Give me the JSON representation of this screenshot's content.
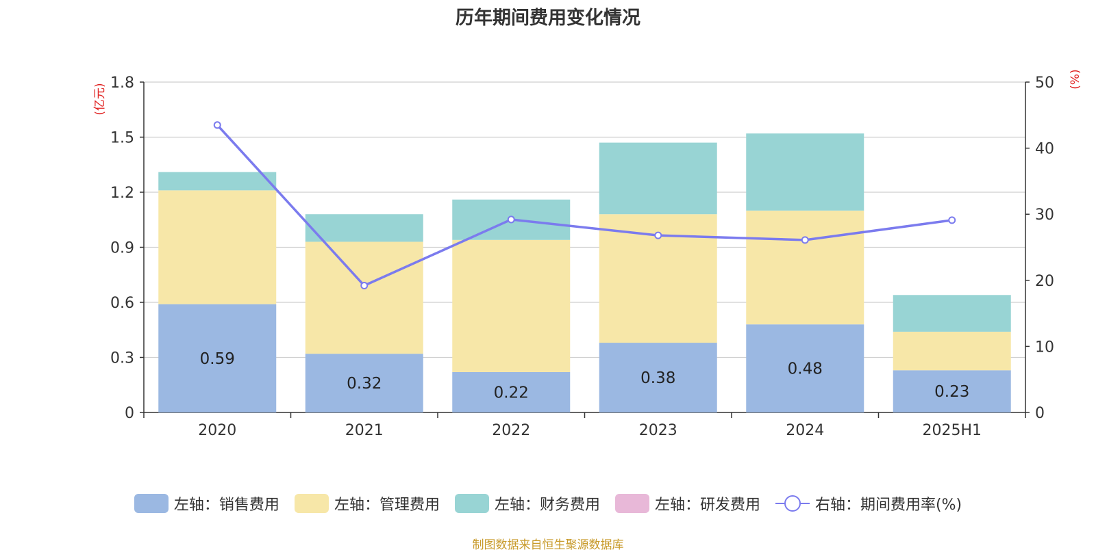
{
  "title": "历年期间费用变化情况",
  "source": "制图数据来自恒生聚源数据库",
  "colors": {
    "sales": "#9bb8e2",
    "admin": "#f7e7a8",
    "finance": "#98d4d4",
    "rd": "#e8b8d8",
    "rate": "#7b7bee",
    "axis_unit": "#e0201f"
  },
  "legend": [
    {
      "label": "左轴：销售费用",
      "color": "#9bb8e2",
      "kind": "bar"
    },
    {
      "label": "左轴：管理费用",
      "color": "#f7e7a8",
      "kind": "bar"
    },
    {
      "label": "左轴：财务费用",
      "color": "#98d4d4",
      "kind": "bar"
    },
    {
      "label": "左轴：研发费用",
      "color": "#e8b8d8",
      "kind": "bar"
    },
    {
      "label": "右轴：期间费用率(%)",
      "color": "#7b7bee",
      "kind": "line"
    }
  ],
  "chart_data": {
    "type": "bar",
    "stacked": true,
    "categories": [
      "2020",
      "2021",
      "2022",
      "2023",
      "2024",
      "2025H1"
    ],
    "series": [
      {
        "name": "左轴：销售费用",
        "axis": "left",
        "values": [
          0.59,
          0.32,
          0.22,
          0.38,
          0.48,
          0.23
        ],
        "labels": [
          "0.59",
          "0.32",
          "0.22",
          "0.38",
          "0.48",
          "0.23"
        ]
      },
      {
        "name": "左轴：管理费用",
        "axis": "left",
        "values": [
          0.62,
          0.61,
          0.72,
          0.7,
          0.62,
          0.21
        ]
      },
      {
        "name": "左轴：财务费用",
        "axis": "left",
        "values": [
          0.1,
          0.15,
          0.22,
          0.39,
          0.42,
          0.2
        ]
      },
      {
        "name": "左轴：研发费用",
        "axis": "left",
        "values": [
          0,
          0,
          0,
          0,
          0,
          0
        ]
      },
      {
        "name": "右轴：期间费用率(%)",
        "axis": "right",
        "type": "line",
        "values": [
          43.5,
          19.2,
          29.2,
          26.8,
          26.1,
          29.1
        ]
      }
    ],
    "y_left": {
      "unit": "(亿元)",
      "ylim": [
        0,
        1.8
      ],
      "ticks": [
        "0",
        "0.3",
        "0.6",
        "0.9",
        "1.2",
        "1.5",
        "1.8"
      ]
    },
    "y_right": {
      "unit": "(%)",
      "ylim": [
        0,
        50
      ],
      "ticks": [
        "0",
        "10",
        "20",
        "30",
        "40",
        "50"
      ]
    },
    "grid": true,
    "legend_position": "bottom"
  }
}
